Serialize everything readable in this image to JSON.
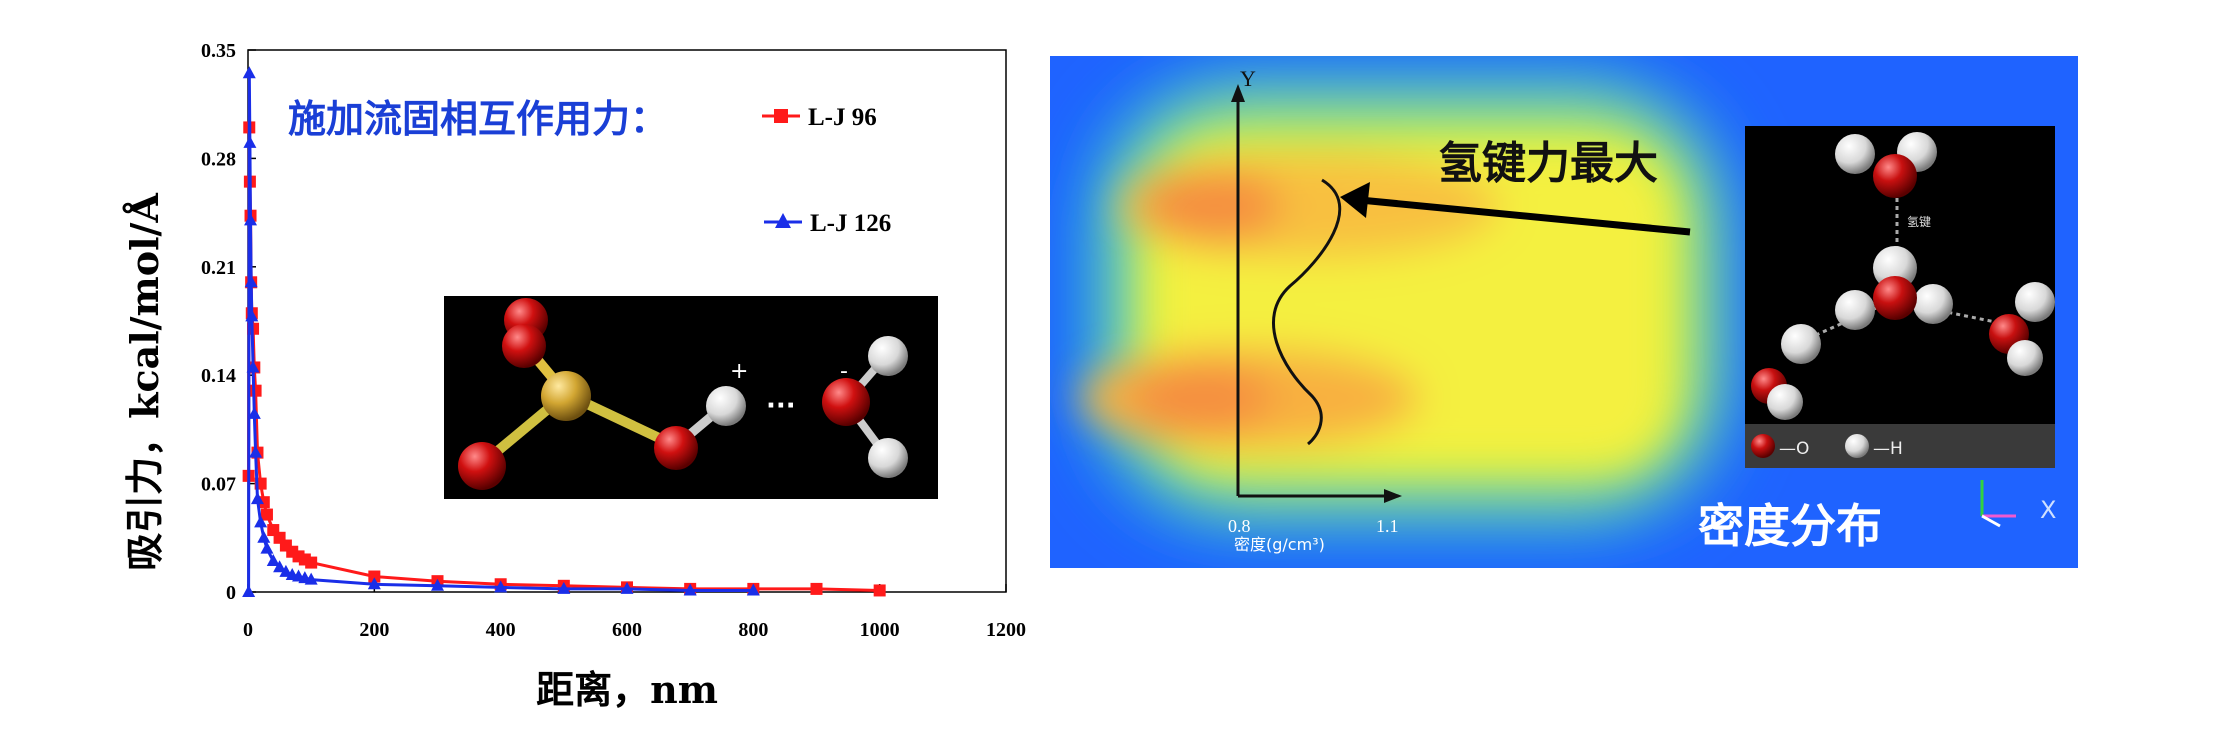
{
  "chart_data": {
    "type": "scatter",
    "title": "",
    "annotation": "施加流固相互作用力：",
    "xlabel": "距离，nm",
    "ylabel": "吸引力，kcal/mol/Å",
    "xlim": [
      0,
      1200
    ],
    "ylim": [
      0,
      0.35
    ],
    "xticks": [
      "0",
      "200",
      "400",
      "600",
      "800",
      "1000",
      "1200"
    ],
    "yticks": [
      "0",
      "0.07",
      "0.14",
      "0.21",
      "0.28",
      "0.35"
    ],
    "series": [
      {
        "name": "L-J 96",
        "color": "#ff1a1a",
        "marker": "square",
        "x": [
          1,
          2,
          3,
          4,
          5,
          6,
          8,
          10,
          12,
          15,
          20,
          25,
          30,
          40,
          50,
          60,
          70,
          80,
          90,
          100,
          200,
          300,
          400,
          500,
          600,
          700,
          800,
          900,
          1000
        ],
        "y": [
          0.075,
          0.3,
          0.265,
          0.243,
          0.2,
          0.18,
          0.17,
          0.145,
          0.13,
          0.09,
          0.07,
          0.058,
          0.05,
          0.04,
          0.035,
          0.03,
          0.026,
          0.023,
          0.021,
          0.019,
          0.01,
          0.007,
          0.005,
          0.004,
          0.003,
          0.002,
          0.002,
          0.002,
          0.001
        ]
      },
      {
        "name": "L-J 126",
        "color": "#1a2ee8",
        "marker": "triangle",
        "x": [
          1,
          2,
          3,
          4,
          5,
          6,
          8,
          10,
          12,
          15,
          20,
          25,
          30,
          40,
          50,
          60,
          70,
          80,
          90,
          100,
          200,
          300,
          400,
          500,
          600,
          700,
          800
        ],
        "y": [
          0.0,
          0.335,
          0.29,
          0.24,
          0.2,
          0.178,
          0.145,
          0.115,
          0.09,
          0.06,
          0.045,
          0.035,
          0.028,
          0.02,
          0.016,
          0.013,
          0.011,
          0.01,
          0.009,
          0.008,
          0.005,
          0.004,
          0.003,
          0.002,
          0.002,
          0.001,
          0.001
        ]
      }
    ]
  },
  "inset_molecule": {
    "plus_sign": "+",
    "minus_sign": "-",
    "dots": "···"
  },
  "heatmap": {
    "y_axis_label": "Y",
    "x_tick_left": "0.8",
    "x_tick_right": "1.1",
    "x_axis_label": "密度(g/cm³)",
    "arrow_label": "氢键力最大",
    "bottom_label": "密度分布",
    "axis_x_letter": "X",
    "inset": {
      "bond_label": "氢键",
      "legend_o": "—O",
      "legend_h": "—H"
    }
  },
  "colors": {
    "series_red": "#ff1a1a",
    "series_blue": "#1a2ee8",
    "annotation_blue": "#1a3fd6",
    "heat_background": "#1f63ff"
  }
}
